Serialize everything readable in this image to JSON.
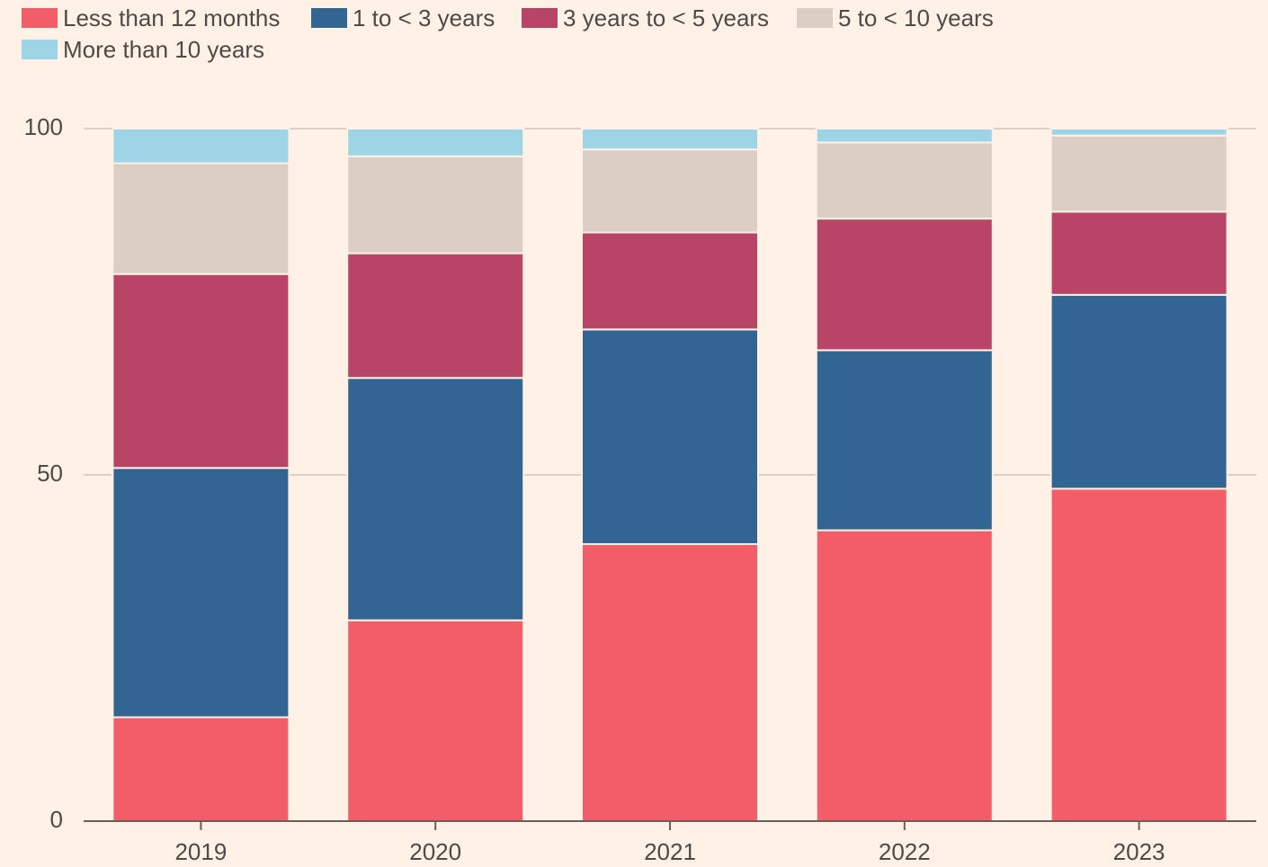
{
  "chart_data": {
    "type": "stacked_bar",
    "categories": [
      "2019",
      "2020",
      "2021",
      "2022",
      "2023"
    ],
    "series": [
      {
        "name": "Less than 12 months",
        "color": "#f35d68",
        "values": [
          15,
          29,
          40,
          42,
          48
        ]
      },
      {
        "name": "1 to < 3 years",
        "color": "#336593",
        "values": [
          36,
          35,
          31,
          26,
          28
        ]
      },
      {
        "name": "3 years to < 5 years",
        "color": "#b84467",
        "values": [
          28,
          18,
          14,
          19,
          12
        ]
      },
      {
        "name": "5 to < 10 years",
        "color": "#dbcfc4",
        "values": [
          16,
          14,
          12,
          11,
          11
        ]
      },
      {
        "name": "More than 10 years",
        "color": "#9dd4e6",
        "values": [
          5,
          4,
          3,
          2,
          1
        ]
      }
    ],
    "ylim": [
      0,
      100
    ],
    "yticks": [
      0,
      50,
      100
    ],
    "grid": true
  }
}
